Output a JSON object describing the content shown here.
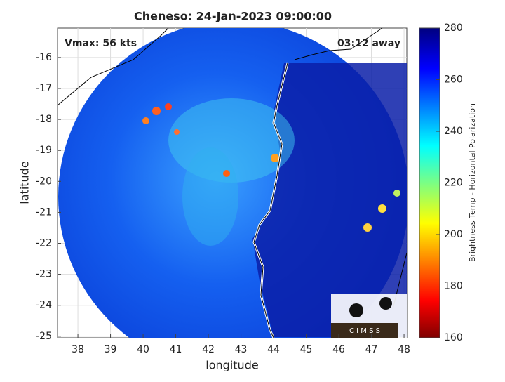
{
  "chart_data": {
    "type": "map",
    "title": "Cheneso: 24-Jan-2023 09:00:00",
    "xlabel": "longitude",
    "ylabel": "latitude",
    "xlim": [
      37.375,
      48.085
    ],
    "ylim": [
      -25.05,
      -15.05
    ],
    "xticks": [
      38,
      39,
      40,
      41,
      42,
      43,
      44,
      45,
      46,
      47,
      48
    ],
    "yticks": [
      -16,
      -17,
      -18,
      -19,
      -20,
      -21,
      -22,
      -23,
      -24,
      -25
    ],
    "grid": true,
    "annotations": [
      "Vmax: 56 kts",
      "03:12 away"
    ],
    "logo_text": "C I M S S",
    "colorbar": {
      "label": "Brightness Temp - Horizontal Polarization",
      "clim": [
        160,
        280
      ],
      "ticks": [
        160,
        180,
        200,
        220,
        240,
        260,
        280
      ]
    }
  }
}
